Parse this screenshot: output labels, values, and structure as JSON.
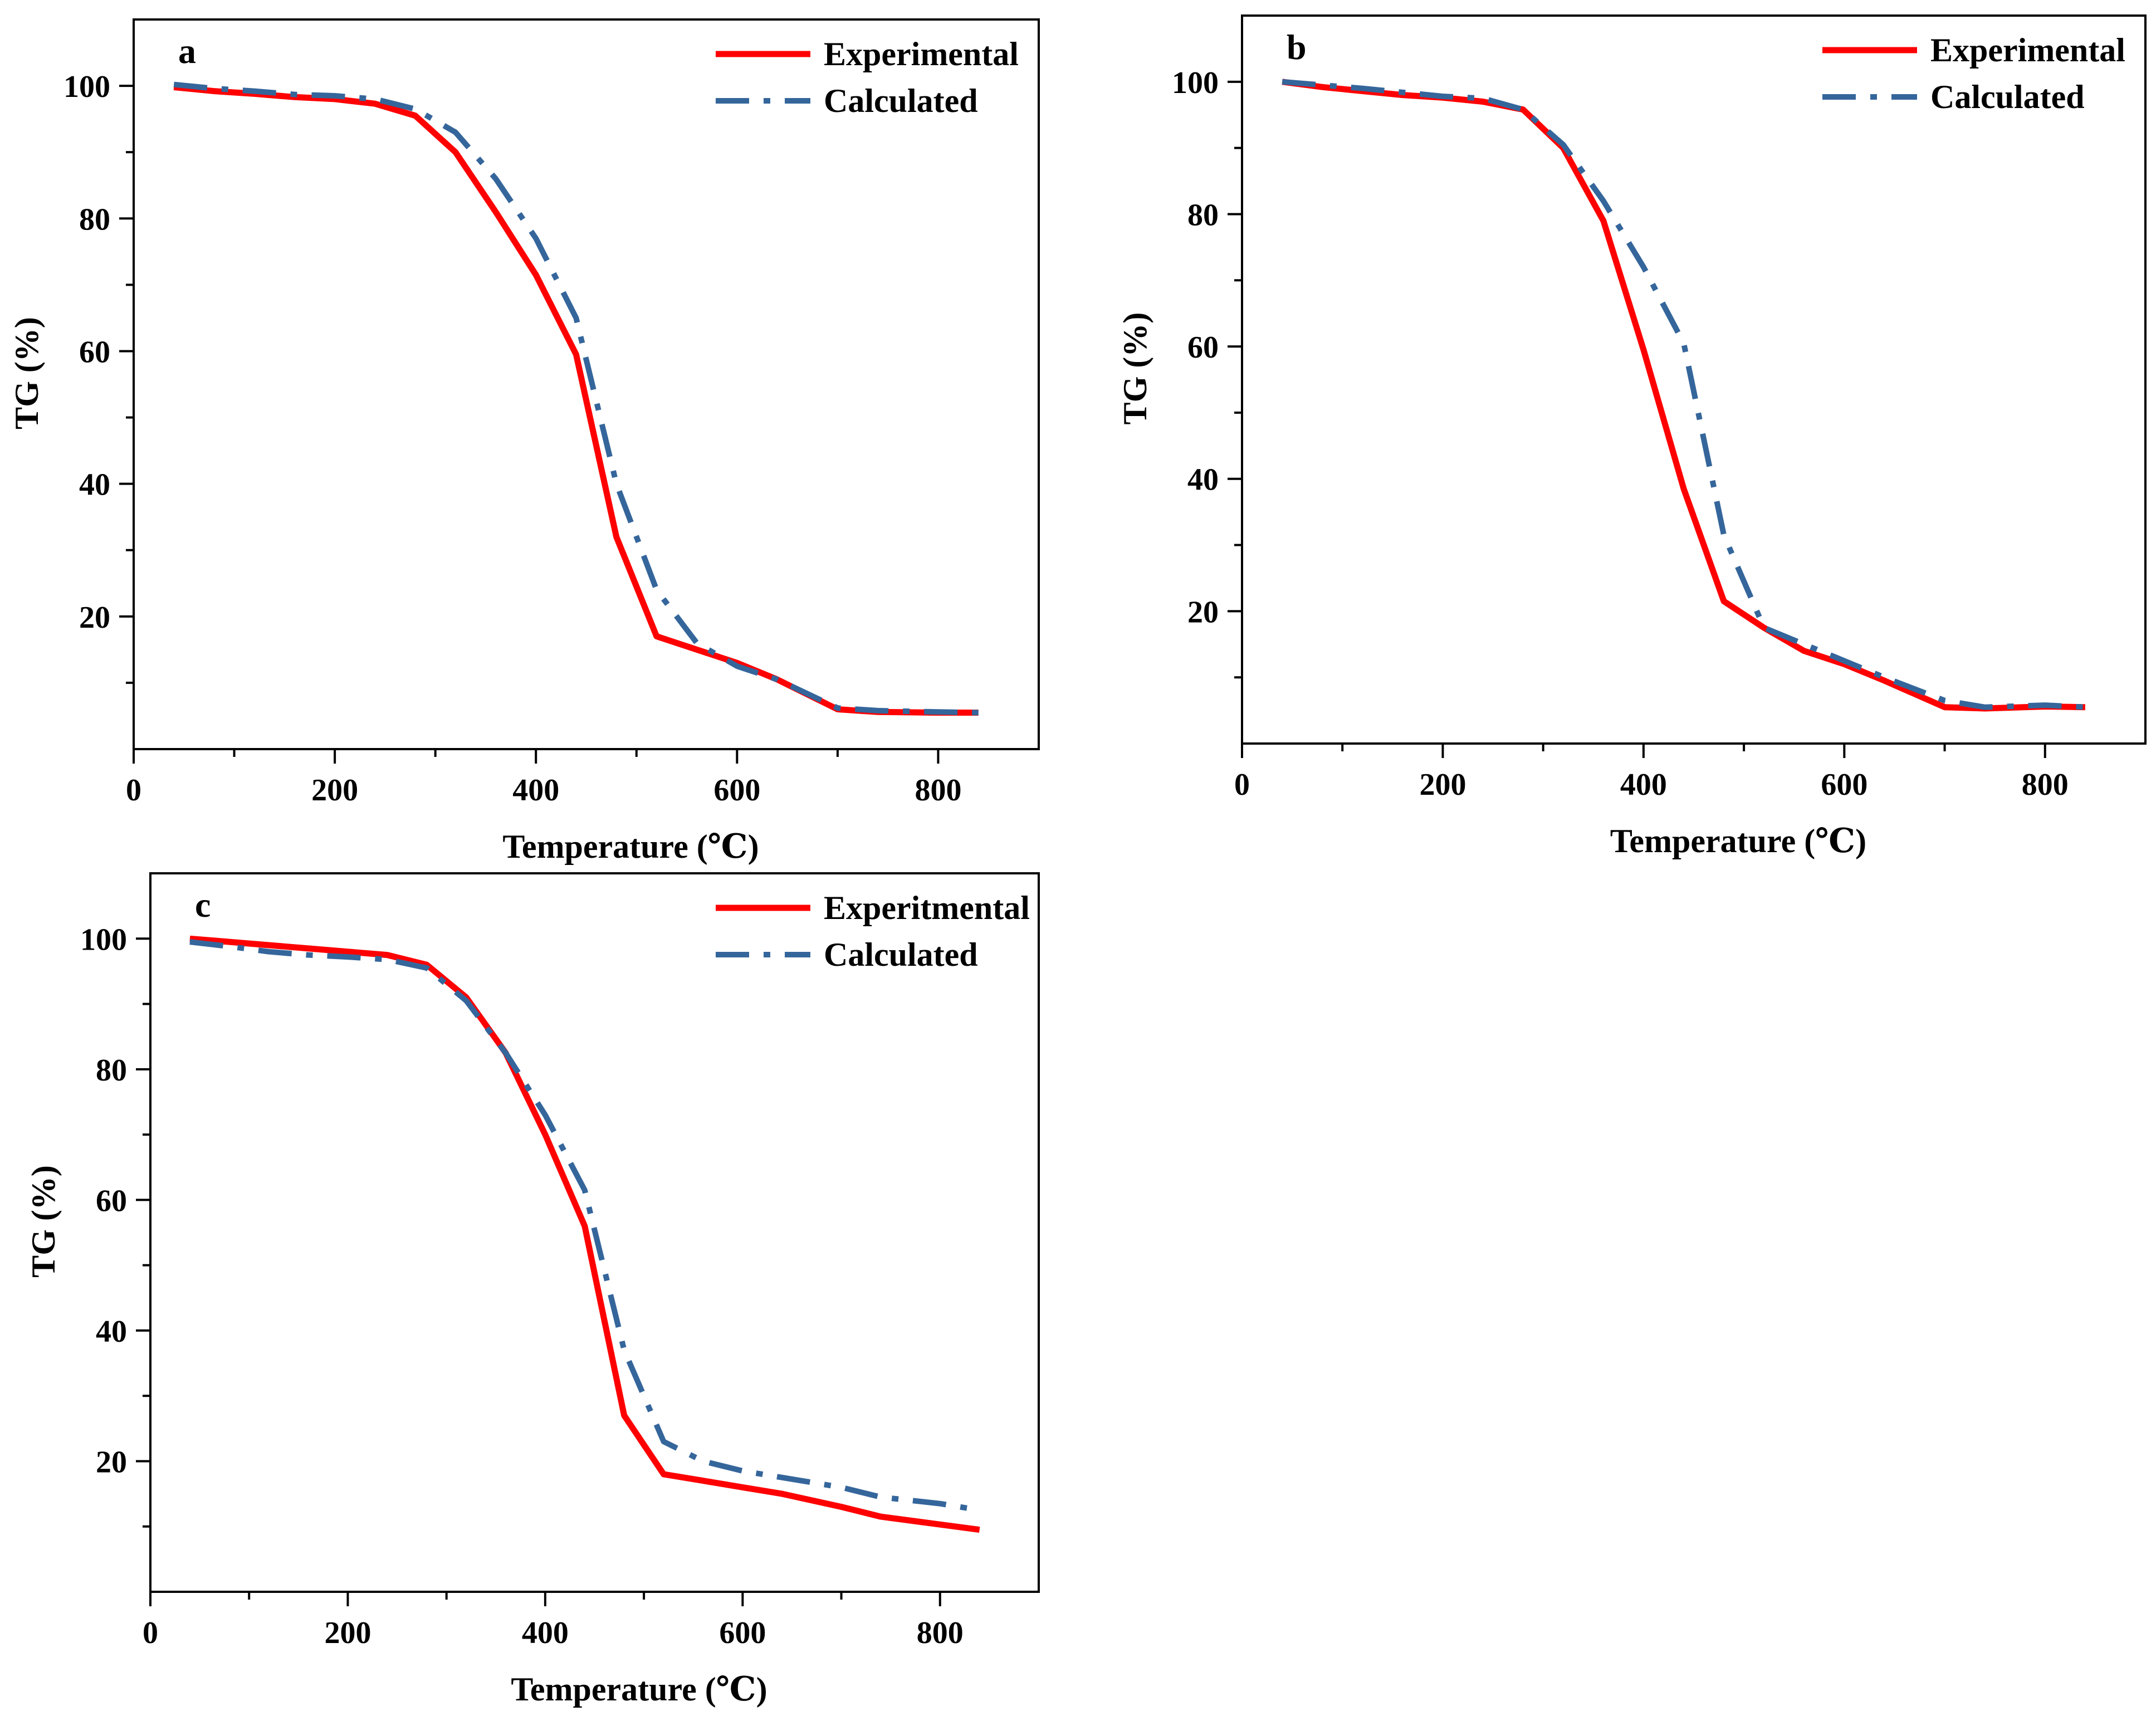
{
  "chart_data": [
    {
      "type": "line",
      "panel_label": "a",
      "xlabel": "Temperature (℃)",
      "ylabel": "TG (%)",
      "xlim": [
        0,
        900
      ],
      "ylim": [
        0,
        110
      ],
      "xticks": [
        0,
        200,
        400,
        600,
        800
      ],
      "yticks": [
        20,
        40,
        60,
        80,
        100
      ],
      "legend_position": "top-right",
      "series": [
        {
          "name": "Experimental",
          "color": "#ff0000",
          "style": "solid",
          "x": [
            40,
            80,
            120,
            160,
            200,
            240,
            280,
            320,
            360,
            400,
            440,
            480,
            520,
            560,
            600,
            640,
            700,
            740,
            800,
            840
          ],
          "y": [
            99.8,
            99.2,
            98.8,
            98.3,
            98.0,
            97.3,
            95.5,
            90.0,
            81.0,
            71.5,
            59.5,
            32.0,
            17.0,
            15.0,
            13.0,
            10.5,
            6.0,
            5.6,
            5.5,
            5.5
          ]
        },
        {
          "name": "Calculated",
          "color": "#35669b",
          "style": "dashdot",
          "x": [
            40,
            80,
            120,
            160,
            200,
            240,
            280,
            320,
            360,
            400,
            440,
            480,
            520,
            560,
            600,
            640,
            700,
            740,
            800,
            840
          ],
          "y": [
            100.2,
            99.6,
            99.2,
            98.7,
            98.5,
            98.0,
            96.5,
            93.0,
            86.0,
            77.0,
            65.0,
            40.0,
            24.0,
            16.0,
            12.5,
            10.5,
            6.2,
            5.8,
            5.6,
            5.5
          ]
        }
      ]
    },
    {
      "type": "line",
      "panel_label": "b",
      "xlabel": "Temperature (℃)",
      "ylabel": "TG (%)",
      "xlim": [
        0,
        900
      ],
      "ylim": [
        0,
        110
      ],
      "xticks": [
        0,
        200,
        400,
        600,
        800
      ],
      "yticks": [
        20,
        40,
        60,
        80,
        100
      ],
      "legend_position": "top-right",
      "series": [
        {
          "name": "Experimental",
          "color": "#ff0000",
          "style": "solid",
          "x": [
            40,
            80,
            120,
            160,
            200,
            240,
            280,
            320,
            360,
            400,
            440,
            480,
            520,
            560,
            600,
            640,
            700,
            740,
            800,
            840
          ],
          "y": [
            100.0,
            99.2,
            98.6,
            98.0,
            97.6,
            97.0,
            95.8,
            90.0,
            79.0,
            59.5,
            38.5,
            21.5,
            17.5,
            14.0,
            12.0,
            9.5,
            5.5,
            5.3,
            5.6,
            5.5
          ]
        },
        {
          "name": "Calculated",
          "color": "#35669b",
          "style": "dashdot",
          "x": [
            40,
            80,
            120,
            160,
            200,
            240,
            280,
            320,
            360,
            400,
            440,
            480,
            520,
            560,
            600,
            640,
            700,
            740,
            800,
            840
          ],
          "y": [
            100.0,
            99.5,
            99.0,
            98.4,
            97.8,
            97.5,
            95.8,
            90.5,
            82.0,
            72.0,
            60.5,
            31.5,
            17.5,
            15.0,
            12.5,
            10.0,
            6.5,
            5.5,
            5.8,
            5.5
          ]
        }
      ]
    },
    {
      "type": "line",
      "panel_label": "c",
      "xlabel": "Temperature (℃)",
      "ylabel": "TG (%)",
      "xlim": [
        0,
        900
      ],
      "ylim": [
        0,
        110
      ],
      "xticks": [
        0,
        200,
        400,
        600,
        800
      ],
      "yticks": [
        20,
        40,
        60,
        80,
        100
      ],
      "legend_position": "top-right",
      "series": [
        {
          "name": "Experitmental",
          "color": "#ff0000",
          "style": "solid",
          "x": [
            40,
            80,
            120,
            160,
            200,
            240,
            280,
            320,
            360,
            400,
            440,
            480,
            520,
            560,
            600,
            640,
            700,
            740,
            800,
            840
          ],
          "y": [
            100.0,
            99.5,
            99.0,
            98.5,
            98.0,
            97.5,
            96.0,
            91.0,
            82.5,
            70.0,
            56.0,
            27.0,
            18.0,
            17.0,
            16.0,
            15.0,
            13.0,
            11.5,
            10.3,
            9.5
          ]
        },
        {
          "name": "Calculated",
          "color": "#35669b",
          "style": "dashdot",
          "x": [
            40,
            80,
            120,
            160,
            200,
            240,
            280,
            320,
            360,
            400,
            440,
            480,
            520,
            560,
            600,
            640,
            700,
            740,
            800,
            840
          ],
          "y": [
            99.5,
            98.8,
            98.0,
            97.5,
            97.2,
            96.8,
            95.5,
            90.5,
            82.5,
            73.0,
            61.5,
            37.0,
            23.0,
            20.0,
            18.5,
            17.5,
            16.0,
            14.5,
            13.5,
            12.5
          ]
        }
      ]
    }
  ]
}
